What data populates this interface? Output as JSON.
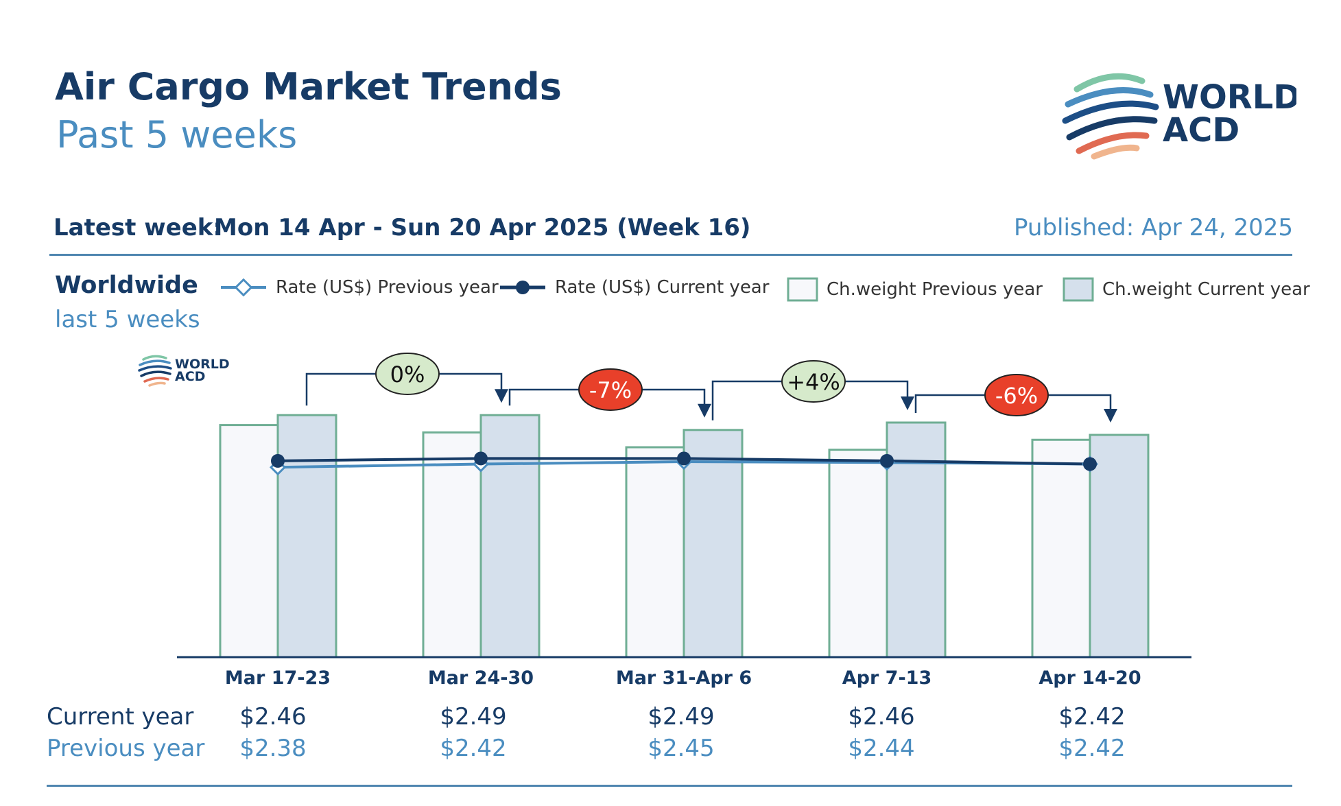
{
  "header": {
    "title": "Air Cargo Market Trends",
    "subtitle": "Past 5 weeks",
    "latest_label": "Latest week:",
    "latest_value": "Mon 14 Apr - Sun 20 Apr 2025 (Week 16)",
    "published": "Published: Apr 24, 2025"
  },
  "logo": {
    "line1": "WORLD",
    "line2": "ACD"
  },
  "region": {
    "name": "Worldwide",
    "period": "last 5 weeks"
  },
  "legend": [
    {
      "key": "rate_prev",
      "label": "Rate (US$) Previous year"
    },
    {
      "key": "rate_curr",
      "label": "Rate (US$) Current year"
    },
    {
      "key": "weight_prev",
      "label": "Ch.weight Previous year"
    },
    {
      "key": "weight_curr",
      "label": "Ch.weight Current year"
    }
  ],
  "colors": {
    "dark_blue": "#173b66",
    "light_blue": "#4a8dc0",
    "bar_prev_fill": "#f7f8fb",
    "bar_curr_fill": "#d5e0ec",
    "bar_edge": "#6fae94",
    "badge_red": "#e8402a",
    "badge_green": "#d6eacb"
  },
  "chart_data": {
    "type": "bar",
    "categories": [
      "Mar 17-23",
      "Mar 24-30",
      "Mar 31-Apr 6",
      "Apr 7-13",
      "Apr 14-20"
    ],
    "series": [
      {
        "name": "Ch.weight Previous year",
        "type": "bar",
        "values": [
          94,
          91,
          85,
          84,
          88
        ]
      },
      {
        "name": "Ch.weight Current year",
        "type": "bar",
        "values": [
          98,
          98,
          92,
          95,
          90
        ]
      },
      {
        "name": "Rate (US$) Previous year",
        "type": "line",
        "values": [
          2.38,
          2.42,
          2.45,
          2.44,
          2.42
        ]
      },
      {
        "name": "Rate (US$) Current year",
        "type": "line",
        "values": [
          2.46,
          2.49,
          2.49,
          2.46,
          2.42
        ]
      }
    ],
    "weight_range": [
      0,
      100
    ],
    "rate_range": [
      0,
      3.25
    ],
    "week_changes": [
      "0%",
      "-7%",
      "+4%",
      "-6%"
    ],
    "change_signs": [
      "neutral",
      "negative",
      "positive",
      "negative"
    ]
  },
  "table": {
    "current_label": "Current year",
    "previous_label": "Previous year",
    "current": [
      "$2.46",
      "$2.49",
      "$2.49",
      "$2.46",
      "$2.42"
    ],
    "previous": [
      "$2.38",
      "$2.42",
      "$2.45",
      "$2.44",
      "$2.42"
    ]
  }
}
